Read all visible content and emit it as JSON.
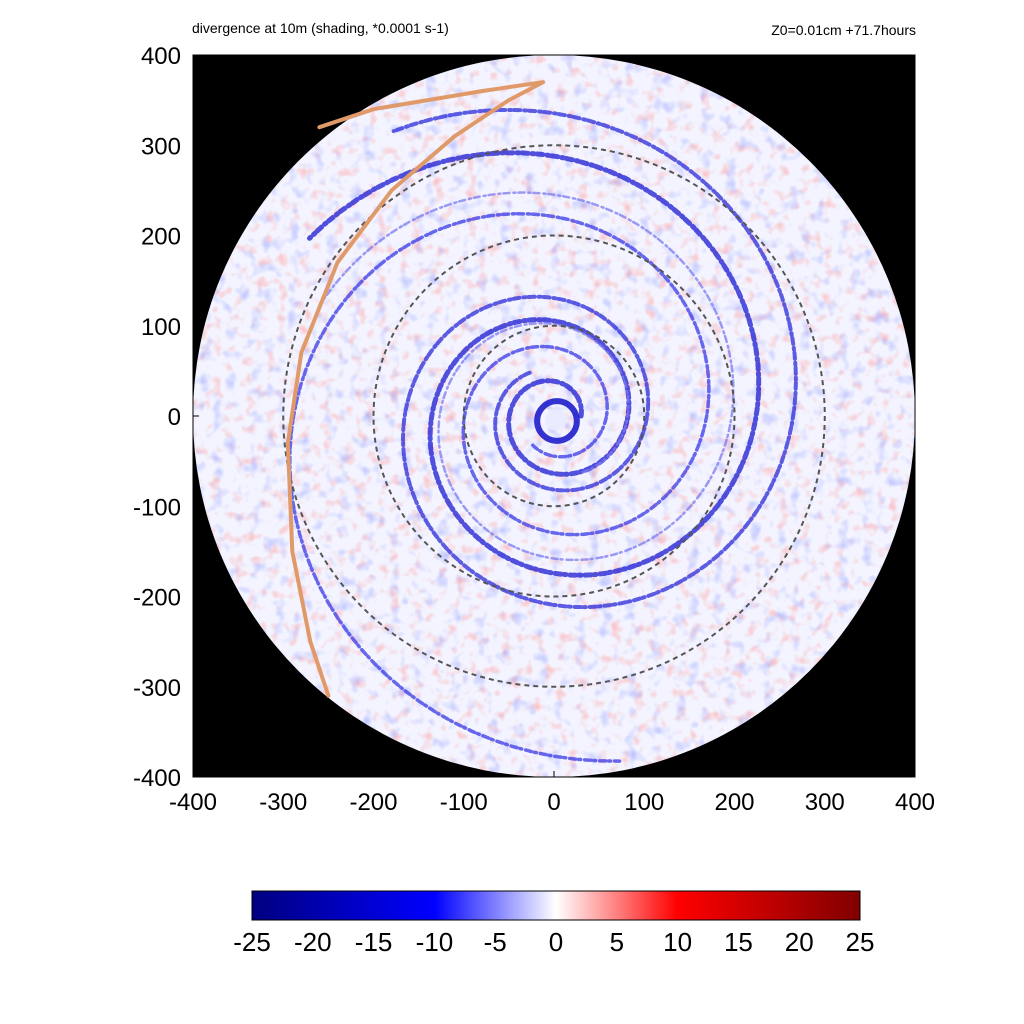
{
  "chart_data": {
    "type": "heatmap",
    "title_left": "divergence at 10m (shading, *0.0001 s-1)",
    "title_right": "Z0=0.01cm  +71.7hours",
    "xlim": [
      -400,
      400
    ],
    "ylim": [
      -400,
      400
    ],
    "x_ticks": [
      "-400",
      "-300",
      "-200",
      "-100",
      "0",
      "100",
      "200",
      "300",
      "400"
    ],
    "y_ticks": [
      "400",
      "300",
      "200",
      "100",
      "0",
      "-100",
      "-200",
      "-300",
      "-400"
    ],
    "domain_radius": 400,
    "reference_circles_radius": [
      100,
      200,
      300
    ],
    "background_color": "#000000",
    "colormap": {
      "min": -25,
      "max": 25,
      "ticks": [
        "-25",
        "-20",
        "-15",
        "-10",
        "-5",
        "0",
        "5",
        "10",
        "15",
        "20",
        "25"
      ],
      "colors": [
        "#000080",
        "#0000ff",
        "#ffffff",
        "#ff0000",
        "#800000"
      ]
    },
    "track_color": "#e09a6a",
    "track": [
      [
        -250,
        -310
      ],
      [
        -270,
        -250
      ],
      [
        -290,
        -150
      ],
      [
        -295,
        -30
      ],
      [
        -280,
        70
      ],
      [
        -240,
        170
      ],
      [
        -180,
        250
      ],
      [
        -110,
        310
      ],
      [
        -50,
        350
      ],
      [
        -12,
        370
      ],
      [
        -80,
        360
      ],
      [
        -200,
        340
      ],
      [
        -260,
        320
      ]
    ]
  }
}
